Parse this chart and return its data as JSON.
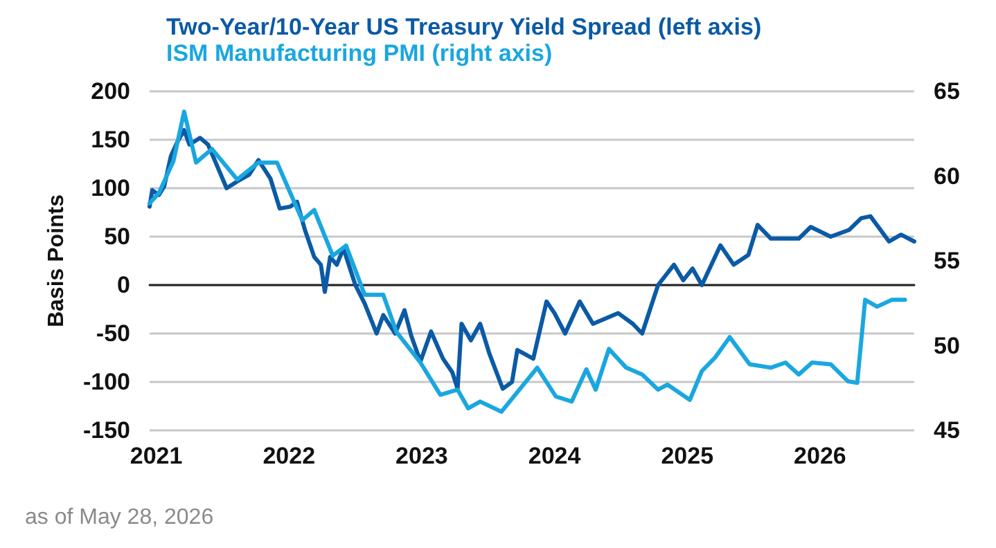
{
  "chart_data": {
    "type": "line",
    "ylabel": "Basis Points",
    "annotations": [
      "as of May 28, 2026"
    ],
    "xlim": [
      2020.95,
      2026.71
    ],
    "xticks": [
      2021,
      2022,
      2023,
      2024,
      2025,
      2026
    ],
    "ylim": [
      -150,
      200
    ],
    "yticks": [
      -150,
      -100,
      -50,
      0,
      50,
      100,
      150,
      200
    ],
    "y2lim": [
      45,
      65
    ],
    "y2ticks": [
      45,
      50,
      55,
      60,
      65
    ],
    "grid": "y",
    "legend": "top left",
    "marker": "none",
    "line_style": "solid",
    "series": [
      {
        "name": "Two-Year/10-Year US Treasury Yield Spread (left axis)",
        "color": "#0b5aa5",
        "x": [
          2020.95,
          2020.97,
          2021.02,
          2021.06,
          2021.11,
          2021.16,
          2021.21,
          2021.25,
          2021.33,
          2021.39,
          2021.44,
          2021.53,
          2021.61,
          2021.7,
          2021.77,
          2021.86,
          2021.93,
          2022.01,
          2022.06,
          2022.12,
          2022.19,
          2022.24,
          2022.27,
          2022.31,
          2022.36,
          2022.41,
          2022.5,
          2022.57,
          2022.66,
          2022.71,
          2022.8,
          2022.87,
          2022.92,
          2022.99,
          2023.07,
          2023.16,
          2023.23,
          2023.27,
          2023.3,
          2023.37,
          2023.44,
          2023.51,
          2023.61,
          2023.68,
          2023.72,
          2023.84,
          2023.94,
          2024.0,
          2024.08,
          2024.19,
          2024.29,
          2024.48,
          2024.59,
          2024.66,
          2024.78,
          2024.9,
          2024.97,
          2025.04,
          2025.11,
          2025.25,
          2025.35,
          2025.46,
          2025.53,
          2025.63,
          2025.84,
          2025.93,
          2026.08,
          2026.22,
          2026.31,
          2026.38,
          2026.52,
          2026.61,
          2026.71
        ],
        "values": [
          81,
          98,
          93,
          102,
          133,
          148,
          160,
          145,
          152,
          145,
          129,
          100,
          107,
          114,
          129,
          110,
          79,
          81,
          86,
          57,
          29,
          21,
          -7,
          29,
          21,
          38,
          0,
          -19,
          -50,
          -31,
          -50,
          -26,
          -52,
          -79,
          -48,
          -76,
          -90,
          -107,
          -40,
          -57,
          -40,
          -71,
          -107,
          -100,
          -67,
          -76,
          -17,
          -29,
          -50,
          -17,
          -40,
          -29,
          -40,
          -50,
          0,
          21,
          5,
          17,
          0,
          41,
          21,
          31,
          62,
          48,
          48,
          60,
          50,
          57,
          69,
          71,
          45,
          52,
          45
        ]
      },
      {
        "name": "ISM Manufacturing PMI (right axis)",
        "color": "#1aa7e0",
        "axis": "y2",
        "x": [
          2020.95,
          2021.02,
          2021.13,
          2021.21,
          2021.3,
          2021.42,
          2021.61,
          2021.77,
          2021.91,
          2022.01,
          2022.1,
          2022.19,
          2022.33,
          2022.43,
          2022.57,
          2022.71,
          2022.81,
          2022.99,
          2023.14,
          2023.27,
          2023.35,
          2023.44,
          2023.6,
          2023.87,
          2024.01,
          2024.13,
          2024.24,
          2024.31,
          2024.41,
          2024.54,
          2024.66,
          2024.78,
          2024.85,
          2025.02,
          2025.11,
          2025.21,
          2025.32,
          2025.47,
          2025.63,
          2025.74,
          2025.84,
          2025.94,
          2026.08,
          2026.21,
          2026.28,
          2026.34,
          2026.43,
          2026.54,
          2026.64
        ],
        "values": [
          58.4,
          59.0,
          60.9,
          63.8,
          60.8,
          61.6,
          59.8,
          60.8,
          60.8,
          59.0,
          57.4,
          58.0,
          55.3,
          55.9,
          53.0,
          53.0,
          50.8,
          49.0,
          47.1,
          47.4,
          46.3,
          46.7,
          46.1,
          48.7,
          47.0,
          46.7,
          48.6,
          47.4,
          49.8,
          48.7,
          48.3,
          47.4,
          47.7,
          46.8,
          48.5,
          49.3,
          50.5,
          48.9,
          48.7,
          49.0,
          48.3,
          49.0,
          48.9,
          47.9,
          47.8,
          52.7,
          52.3,
          52.7,
          52.7
        ]
      }
    ]
  }
}
